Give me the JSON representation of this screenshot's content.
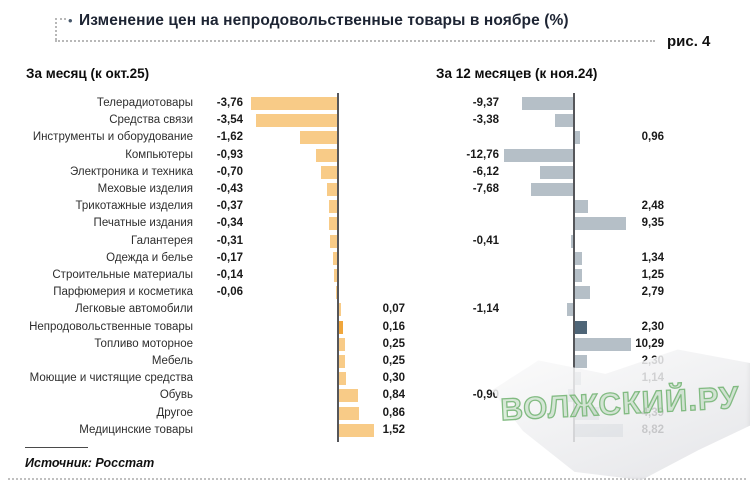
{
  "title": "Изменение цен на непродовольственные товары в ноябре (%)",
  "title_bullet": "•",
  "figure_label": "рис. 4",
  "headers": {
    "month": "За месяц (к окт.25)",
    "year": "За 12 месяцев (к ноя.24)"
  },
  "source": "Источник: Росстат",
  "watermark": "ВОЛЖСКИЙ.РУ",
  "colors": {
    "bar_month": "#F8CB87",
    "bar_month_highlight": "#F0A63C",
    "bar_year": "#B5BFC7",
    "bar_year_highlight": "#4E6577",
    "axis": "#55565a"
  },
  "chart_data": {
    "type": "bar",
    "orientation": "horizontal",
    "title": "Изменение цен на непродовольственные товары в ноябре (%)",
    "value_format": "comma-decimal, 2 places",
    "highlight_category": "Непродовольственные товары",
    "categories": [
      "Телерадиотовары",
      "Средства связи",
      "Инструменты и оборудование",
      "Компьютеры",
      "Электроника и техника",
      "Меховые изделия",
      "Трикотажные изделия",
      "Печатные издания",
      "Галантерея",
      "Одежда и белье",
      "Строительные материалы",
      "Парфюмерия и косметика",
      "Легковые автомобили",
      "Непродовольственные товары",
      "Топливо моторное",
      "Мебель",
      "Моющие и чистящие средства",
      "Обувь",
      "Другое",
      "Медицинские товары"
    ],
    "series": [
      {
        "name": "За месяц (к окт.25)",
        "values": [
          -3.76,
          -3.54,
          -1.62,
          -0.93,
          -0.7,
          -0.43,
          -0.37,
          -0.34,
          -0.31,
          -0.17,
          -0.14,
          -0.06,
          0.07,
          0.16,
          0.25,
          0.25,
          0.3,
          0.84,
          0.86,
          1.52
        ]
      },
      {
        "name": "За 12 месяцев (к ноя.24)",
        "values": [
          -9.37,
          -3.38,
          0.96,
          -12.76,
          -6.12,
          -7.68,
          2.48,
          9.35,
          -0.41,
          1.34,
          1.25,
          2.79,
          -1.14,
          2.3,
          10.29,
          2.3,
          1.14,
          -0.9,
          4.39,
          8.82
        ]
      }
    ]
  }
}
